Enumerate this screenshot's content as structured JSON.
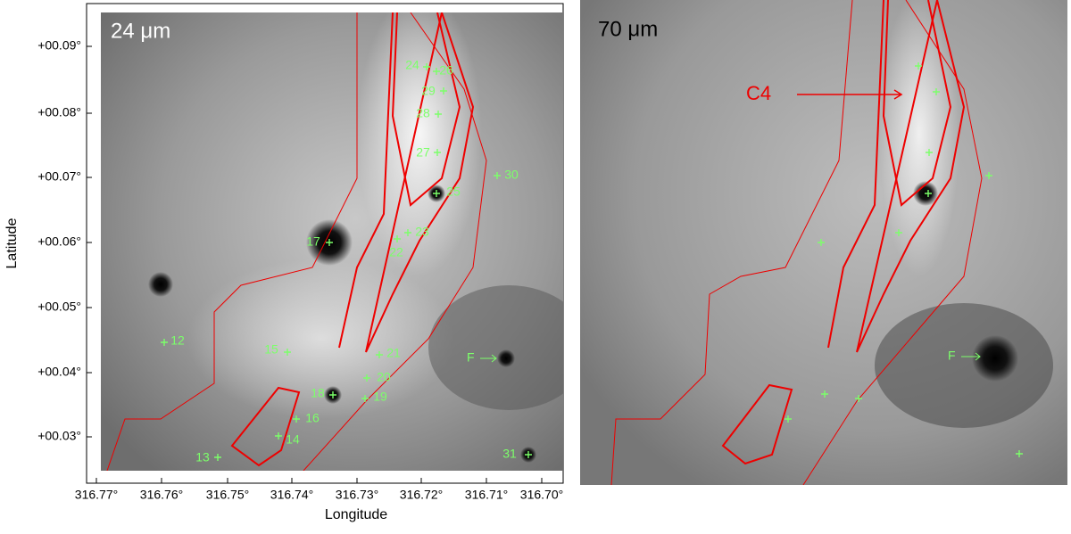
{
  "axes": {
    "x_label": "Longitude",
    "y_label": "Latitude",
    "xticks": [
      "316.77°",
      "316.76°",
      "316.75°",
      "316.74°",
      "316.73°",
      "316.72°",
      "316.71°",
      "316.70°"
    ],
    "yticks": [
      "+00.09°",
      "+00.08°",
      "+00.07°",
      "+00.06°",
      "+00.05°",
      "+00.04°",
      "+00.03°"
    ]
  },
  "panels": [
    {
      "label": "24 μm",
      "sources": [
        "24",
        "26",
        "29",
        "28",
        "27",
        "25",
        "30",
        "23",
        "22",
        "17",
        "12",
        "15",
        "21",
        "20",
        "18",
        "19",
        "16",
        "14",
        "13",
        "31"
      ],
      "marker": "F"
    },
    {
      "label": "70 μm",
      "region": "C4",
      "marker": "F"
    }
  ]
}
